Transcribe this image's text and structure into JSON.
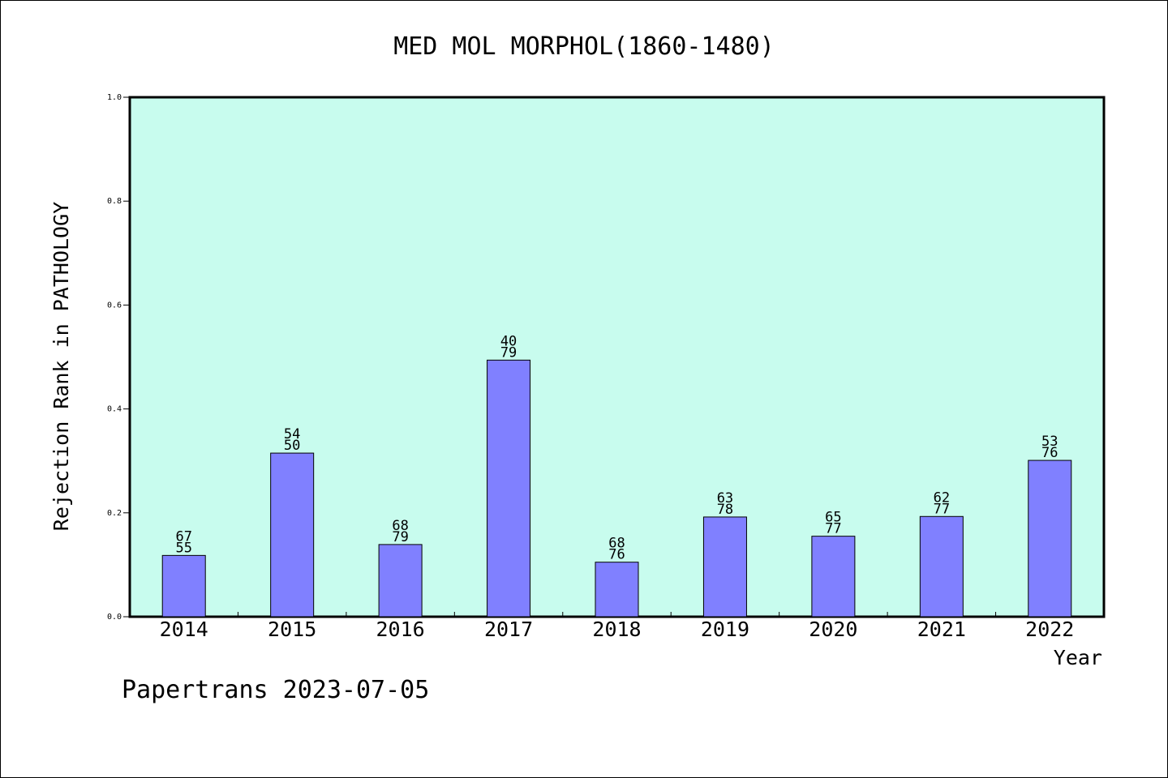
{
  "colors": {
    "plot_background": "#c8fcee",
    "bar_fill": "#8080ff",
    "bar_stroke": "#000000",
    "axis": "#000000"
  },
  "footer": "Papertrans 2023-07-05",
  "chart_data": {
    "type": "bar",
    "title": "MED MOL MORPHOL(1860-1480)",
    "xlabel": "Year",
    "ylabel": "Rejection Rank in PATHOLOGY",
    "ylim": [
      0,
      1.0
    ],
    "yticks": [
      "0.0",
      "0.2",
      "0.4",
      "0.6",
      "0.8",
      "1.0"
    ],
    "grid": false,
    "categories": [
      "2014",
      "2015",
      "2016",
      "2017",
      "2018",
      "2019",
      "2020",
      "2021",
      "2022"
    ],
    "values": [
      0.118,
      0.315,
      0.139,
      0.494,
      0.105,
      0.192,
      0.155,
      0.193,
      0.301
    ],
    "label_top": [
      "67",
      "54",
      "68",
      "40",
      "68",
      "63",
      "65",
      "62",
      "53"
    ],
    "label_bottom": [
      "55",
      "50",
      "79",
      "79",
      "76",
      "78",
      "77",
      "77",
      "76"
    ]
  }
}
